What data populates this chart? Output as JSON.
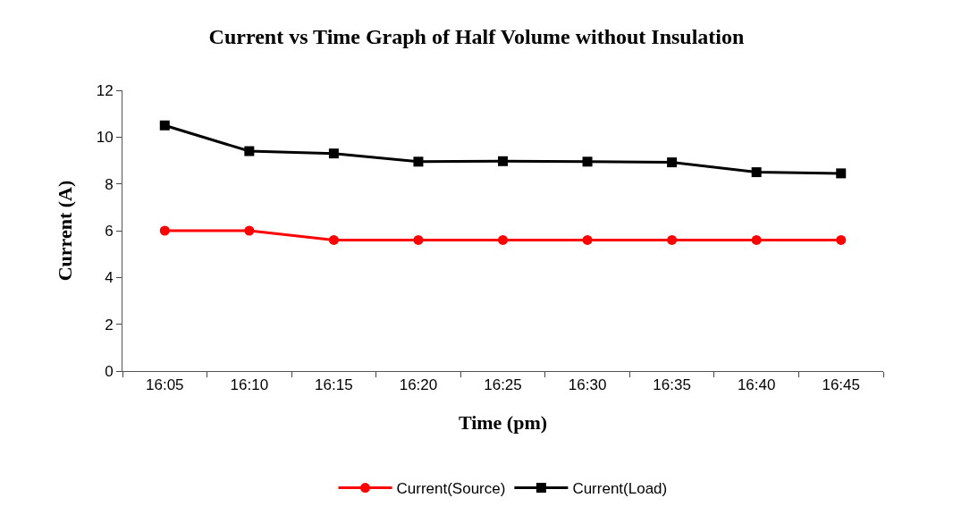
{
  "chart_data": {
    "type": "line",
    "title": "Current vs Time Graph of Half Volume without Insulation",
    "xlabel": "Time (pm)",
    "ylabel": "Current (A)",
    "categories": [
      "16:05",
      "16:10",
      "16:15",
      "16:20",
      "16:25",
      "16:30",
      "16:35",
      "16:40",
      "16:45"
    ],
    "series": [
      {
        "name": "Current(Source)",
        "color": "#ff0000",
        "marker": "circle",
        "values": [
          6.0,
          6.0,
          5.6,
          5.6,
          5.6,
          5.6,
          5.6,
          5.6,
          5.6
        ]
      },
      {
        "name": "Current(Load)",
        "color": "#000000",
        "marker": "square",
        "values": [
          10.5,
          9.4,
          9.3,
          8.95,
          8.97,
          8.95,
          8.92,
          8.5,
          8.45
        ]
      }
    ],
    "ylim": [
      0,
      12
    ],
    "yticks": [
      0,
      2,
      4,
      6,
      8,
      10,
      12
    ],
    "legend": "bottom",
    "line_style": "solid"
  }
}
